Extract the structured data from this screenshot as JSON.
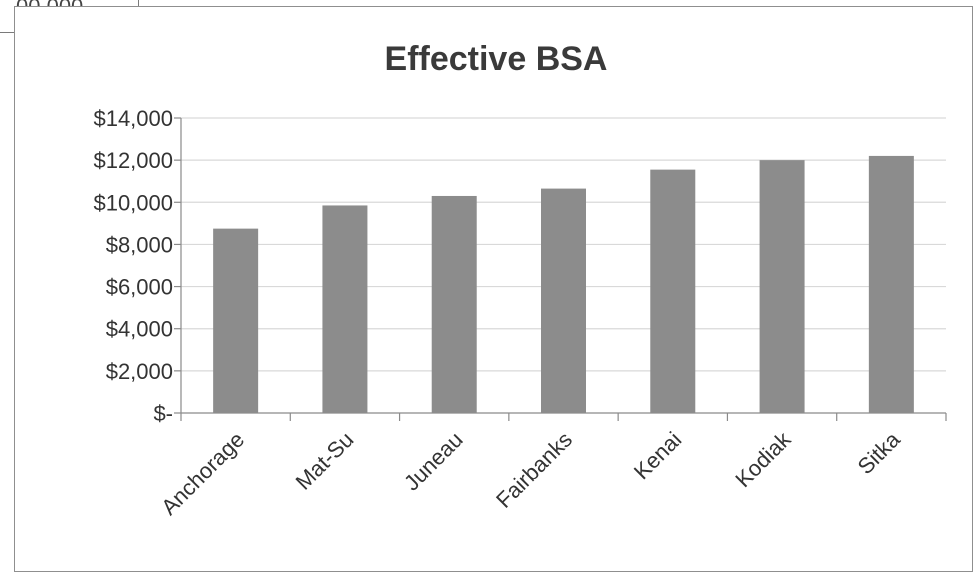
{
  "cell_fragment": "00,000",
  "chart_data": {
    "type": "bar",
    "title": "Effective BSA",
    "categories": [
      "Anchorage",
      "Mat-Su",
      "Juneau",
      "Fairbanks",
      "Kenai",
      "Kodiak",
      "Sitka"
    ],
    "values": [
      8750,
      9850,
      10300,
      10650,
      11550,
      12000,
      12200
    ],
    "y_ticks": [
      0,
      2000,
      4000,
      6000,
      8000,
      10000,
      12000,
      14000
    ],
    "y_tick_labels": [
      "$-",
      "$2,000",
      "$4,000",
      "$6,000",
      "$8,000",
      "$10,000",
      "$12,000",
      "$14,000"
    ],
    "ylim": [
      0,
      14000
    ],
    "xlabel": "",
    "ylabel": "",
    "grid": true,
    "legend": "none",
    "bar_color": "#8c8c8c",
    "grid_color": "#d9d9d9"
  }
}
